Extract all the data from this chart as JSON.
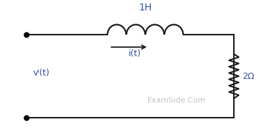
{
  "bg_color": "#ffffff",
  "line_color": "#1a1a1a",
  "label_color": "#3050a0",
  "resistor_color": "#1a1a1a",
  "inductor_color": "#1a1a1a",
  "label_1H": "1H",
  "label_it": "i(t)",
  "label_vt": "vᴵ(t)",
  "label_2ohm": "2Ω",
  "watermark": "ExamSide.Com",
  "watermark_color": "#bbbbbb",
  "dot_color": "#000000",
  "fig_width": 3.96,
  "fig_height": 1.95,
  "dpi": 100
}
